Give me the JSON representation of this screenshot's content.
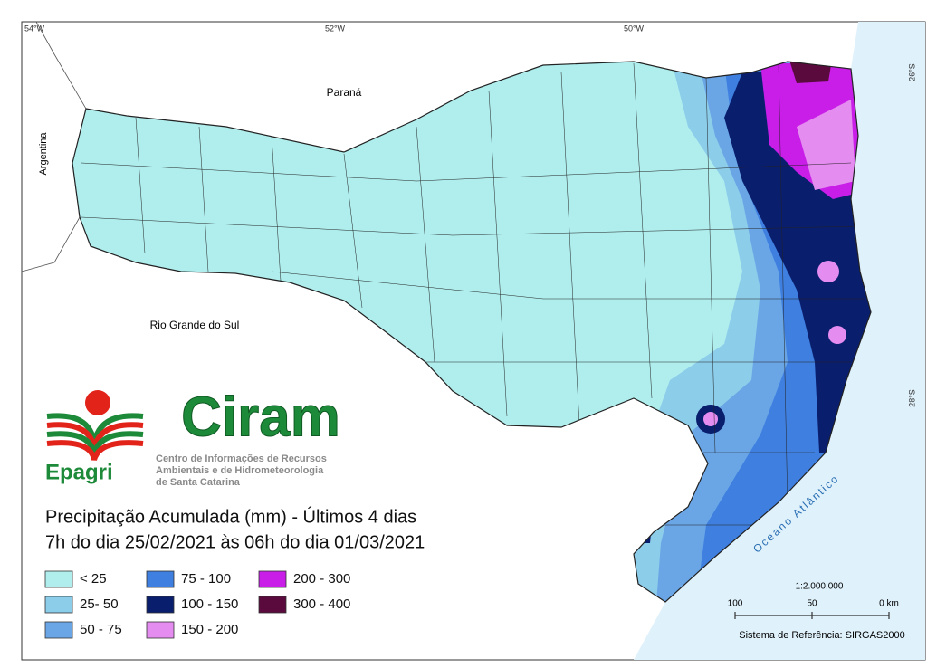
{
  "map": {
    "graticule": {
      "lon": [
        "54°W",
        "52°W",
        "50°W"
      ],
      "lat": [
        "26°S",
        "28°S"
      ]
    },
    "places": {
      "parana": "Paraná",
      "argentina": "Argentina",
      "rgs": "Rio Grande do Sul",
      "ocean": "Oceano Atlântico"
    },
    "logo": {
      "name": "Ciram",
      "org": "Epagri",
      "desc": [
        "Centro de Informações de Recursos",
        "Ambientais e de Hidrometeorologia",
        "de Santa Catarina"
      ]
    },
    "title": [
      "Precipitação Acumulada (mm) - Últimos 4 dias",
      "7h do dia 25/02/2021 às 06h do dia 01/03/2021"
    ],
    "legend": [
      {
        "label": "< 25",
        "color": "#b0eeee"
      },
      {
        "label": "25- 50",
        "color": "#8ccdea"
      },
      {
        "label": "50 - 75",
        "color": "#6aa6e6"
      },
      {
        "label": "75 - 100",
        "color": "#3f7fe0"
      },
      {
        "label": "100 - 150",
        "color": "#0a1e6e"
      },
      {
        "label": "150 - 200",
        "color": "#e58cf0"
      },
      {
        "label": "200 - 300",
        "color": "#c81ee8"
      },
      {
        "label": "300 - 400",
        "color": "#5a0a3c"
      }
    ],
    "scale": {
      "ratio": "1:2.000.000",
      "ticks": [
        "100",
        "50",
        "0 km"
      ]
    },
    "reference": "Sistema de Referência: SIRGAS2000"
  }
}
